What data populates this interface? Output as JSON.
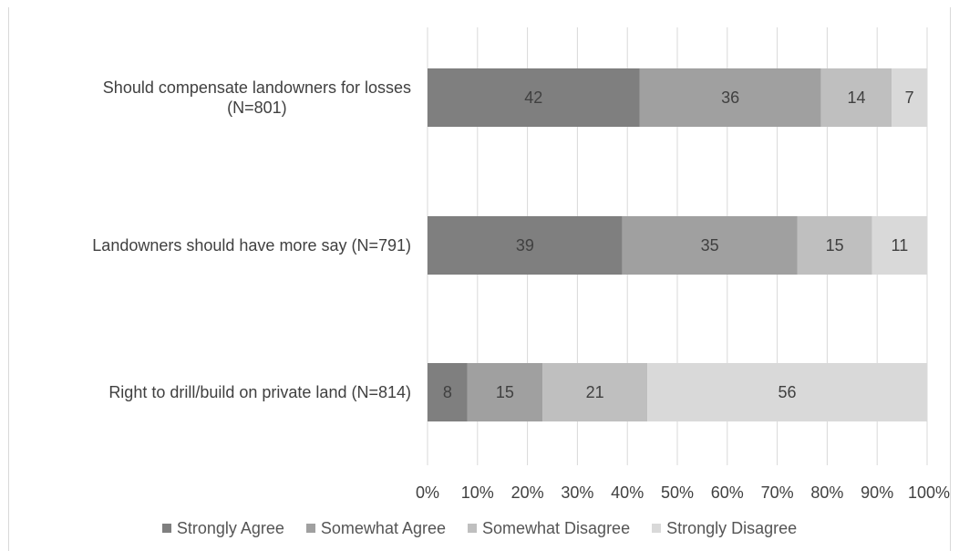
{
  "caption": "",
  "colors": {
    "strongly_agree": "#7f7f7f",
    "somewhat_agree": "#a0a0a0",
    "somewhat_disagree": "#bfbfbf",
    "strongly_disagree": "#d9d9d9",
    "grid": "#d9d9d9",
    "text": "#404040"
  },
  "chart_data": {
    "type": "bar",
    "orientation": "horizontal",
    "stacked": "percent",
    "categories": [
      "Should compensate landowners for losses (N=801)",
      "Landowners should have more say (N=791)",
      "Right to drill/build on private land (N=814)"
    ],
    "category_lines": [
      [
        "Should compensate landowners for losses",
        "(N=801)"
      ],
      [
        "Landowners should have more say (N=791)"
      ],
      [
        "Right to drill/build on private land (N=814)"
      ]
    ],
    "series": [
      {
        "name": "Strongly Agree",
        "values": [
          42,
          39,
          8
        ]
      },
      {
        "name": "Somewhat Agree",
        "values": [
          36,
          35,
          15
        ]
      },
      {
        "name": "Somewhat Disagree",
        "values": [
          14,
          15,
          21
        ]
      },
      {
        "name": "Strongly Disagree",
        "values": [
          7,
          11,
          56
        ]
      }
    ],
    "xlim": [
      0,
      100
    ],
    "xticks": [
      "0%",
      "10%",
      "20%",
      "30%",
      "40%",
      "50%",
      "60%",
      "70%",
      "80%",
      "90%",
      "100%"
    ],
    "grid": true,
    "legend_position": "bottom",
    "data_labels": true
  }
}
